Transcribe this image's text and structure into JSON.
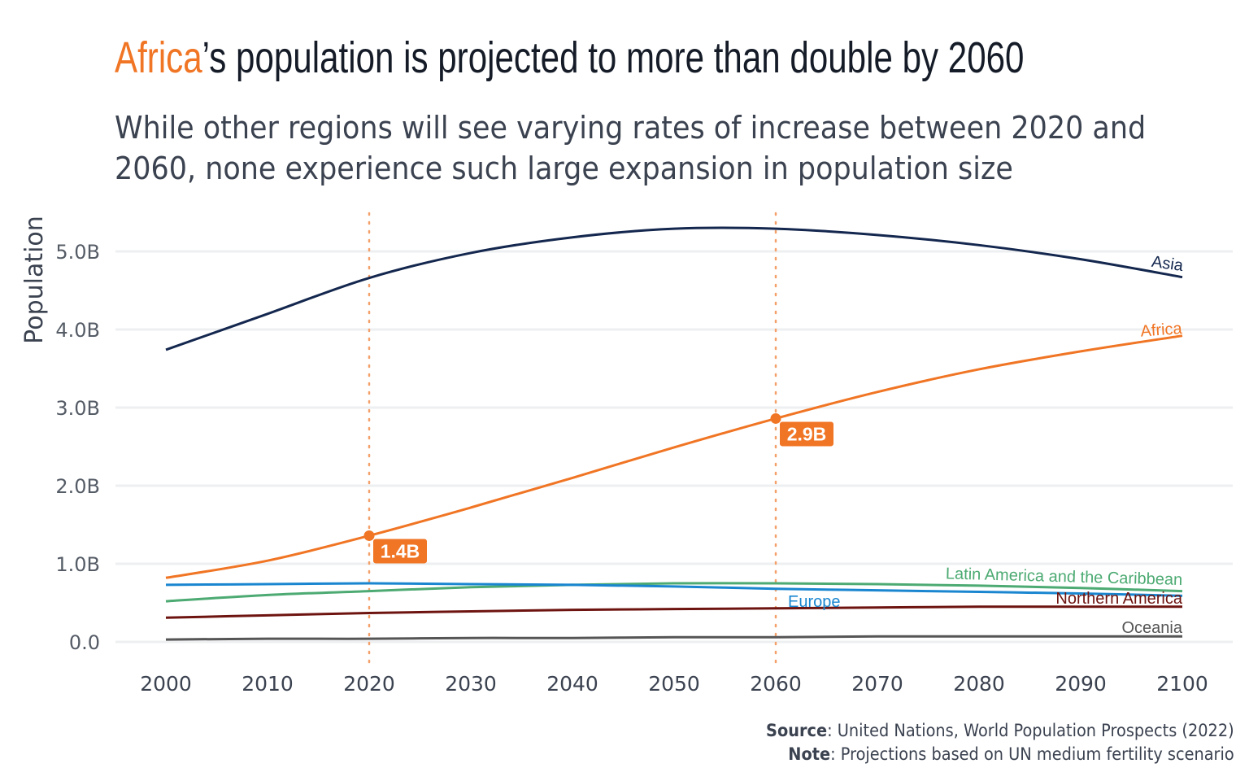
{
  "header": {
    "title_highlight": "Africa",
    "title_rest": "’s population is projected to more than double by 2060",
    "subtitle": "While other regions will see varying rates of increase between 2020 and 2060, none experience such large expansion in population size"
  },
  "footer": {
    "source_label": "Source",
    "source_text": ": United Nations, World Population Prospects (2022)",
    "note_label": "Note",
    "note_text": ": Projections based on UN medium fertility scenario"
  },
  "colors": {
    "accent": "#f07524",
    "reference_line": "#f4a06a",
    "grid": "#eeeff1"
  },
  "chart_data": {
    "type": "line",
    "title": "Africa’s population is projected to more than double by 2060",
    "subtitle": "While other regions will see varying rates of increase between 2020 and 2060, none experience such large expansion in population size",
    "xlabel": "",
    "ylabel": "Population",
    "x": [
      2000,
      2010,
      2020,
      2030,
      2040,
      2050,
      2060,
      2070,
      2080,
      2090,
      2100
    ],
    "xlim": [
      2000,
      2100
    ],
    "ylim": [
      0,
      5.5
    ],
    "y_unit": "billions",
    "x_ticks": [
      "2000",
      "2010",
      "2020",
      "2030",
      "2040",
      "2050",
      "2060",
      "2070",
      "2080",
      "2090",
      "2100"
    ],
    "y_ticks": [
      {
        "value": 0,
        "label": "0.0"
      },
      {
        "value": 1,
        "label": "1.0B"
      },
      {
        "value": 2,
        "label": "2.0B"
      },
      {
        "value": 3,
        "label": "3.0B"
      },
      {
        "value": 4,
        "label": "4.0B"
      },
      {
        "value": 5,
        "label": "5.0B"
      }
    ],
    "grid": true,
    "legend": "direct-labels-at-line-ends",
    "series": [
      {
        "name": "Asia",
        "color": "#14274e",
        "values": [
          3.74,
          4.2,
          4.66,
          4.98,
          5.18,
          5.29,
          5.29,
          5.21,
          5.08,
          4.9,
          4.67
        ]
      },
      {
        "name": "Africa",
        "color": "#f07524",
        "values": [
          0.82,
          1.04,
          1.36,
          1.72,
          2.1,
          2.49,
          2.86,
          3.2,
          3.49,
          3.72,
          3.92
        ]
      },
      {
        "name": "Europe",
        "color": "#1a86d0",
        "values": [
          0.73,
          0.74,
          0.75,
          0.74,
          0.73,
          0.71,
          0.68,
          0.66,
          0.64,
          0.62,
          0.59
        ]
      },
      {
        "name": "Latin America and the Caribbean",
        "color": "#4caa72",
        "values": [
          0.52,
          0.6,
          0.65,
          0.7,
          0.73,
          0.75,
          0.75,
          0.74,
          0.72,
          0.69,
          0.65
        ]
      },
      {
        "name": "Northern America",
        "color": "#6e1410",
        "values": [
          0.31,
          0.34,
          0.37,
          0.39,
          0.41,
          0.42,
          0.43,
          0.44,
          0.45,
          0.45,
          0.45
        ]
      },
      {
        "name": "Oceania",
        "color": "#555555",
        "values": [
          0.03,
          0.04,
          0.04,
          0.05,
          0.05,
          0.06,
          0.06,
          0.07,
          0.07,
          0.07,
          0.07
        ]
      }
    ],
    "reference_lines": [
      {
        "x": 2020,
        "style": "dotted"
      },
      {
        "x": 2060,
        "style": "dotted"
      }
    ],
    "annotations": [
      {
        "series": "Africa",
        "x": 2020,
        "y": 1.36,
        "label": "1.4B"
      },
      {
        "series": "Africa",
        "x": 2060,
        "y": 2.86,
        "label": "2.9B"
      }
    ],
    "series_label_positions": {
      "Asia": "line-end",
      "Africa": "line-end",
      "Europe": "near-2060",
      "Latin America and the Caribbean": "line-end",
      "Northern America": "line-end",
      "Oceania": "line-end"
    }
  }
}
